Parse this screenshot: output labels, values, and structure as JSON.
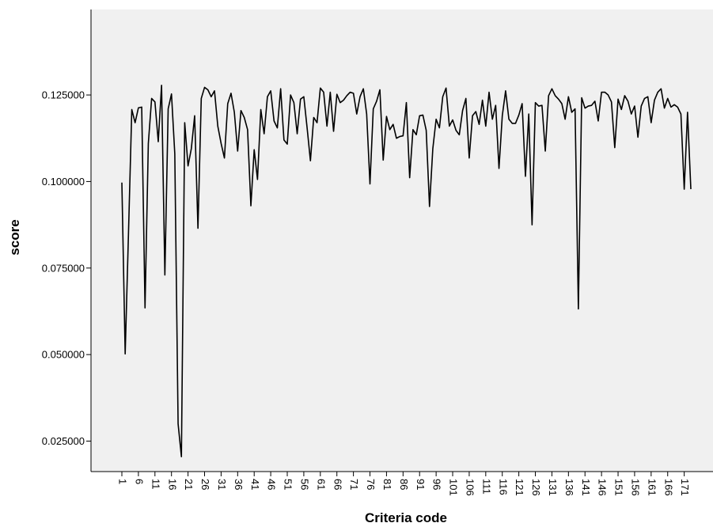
{
  "chart_data": {
    "type": "line",
    "title": "",
    "xlabel": "Criteria code",
    "ylabel": "score",
    "ylim": [
      0.0162,
      0.1497
    ],
    "y_ticks": [
      0.025,
      0.05,
      0.075,
      0.1,
      0.125
    ],
    "y_tick_labels": [
      "0.025000",
      "0.050000",
      "0.075000",
      "0.100000",
      "0.125000"
    ],
    "x_tick_labels": [
      "1",
      "6",
      "11",
      "16",
      "21",
      "26",
      "31",
      "36",
      "41",
      "46",
      "51",
      "56",
      "61",
      "66",
      "71",
      "76",
      "81",
      "86",
      "91",
      "96",
      "101",
      "106",
      "111",
      "116",
      "121",
      "126",
      "131",
      "136",
      "141",
      "146",
      "151",
      "156",
      "161",
      "166",
      "171"
    ],
    "plot_background": "#f0f0f0",
    "line_color": "#000000",
    "grid": false,
    "series": [
      {
        "x": [
          1,
          2,
          3,
          4,
          5,
          6,
          7,
          8,
          9,
          10,
          11,
          12,
          13,
          14,
          15,
          16,
          17,
          18,
          19,
          20,
          21,
          22,
          23,
          24,
          25,
          26,
          27,
          28,
          29,
          30,
          31,
          32,
          33,
          34,
          35,
          36,
          37,
          38,
          39,
          40,
          41,
          42,
          43,
          44,
          45,
          46,
          47,
          48,
          49,
          50,
          51,
          52,
          53,
          54,
          55,
          56,
          57,
          58,
          59,
          60,
          61,
          62,
          63,
          64,
          65,
          66,
          67,
          68,
          69,
          70,
          71,
          72,
          73,
          74,
          75,
          76,
          77,
          78,
          79,
          80,
          81,
          82,
          83,
          84,
          85,
          86,
          87,
          88,
          89,
          90,
          91,
          92,
          93,
          94,
          95,
          96,
          97,
          98,
          99,
          100,
          101,
          102,
          103,
          104,
          105,
          106,
          107,
          108,
          109,
          110,
          111,
          112,
          113,
          114,
          115,
          116,
          117,
          118,
          119,
          120,
          121,
          122,
          123,
          124,
          125,
          126,
          127,
          128,
          129,
          130,
          131,
          132,
          133,
          134,
          135,
          136,
          137,
          138,
          139,
          140,
          141,
          142,
          143,
          144,
          145,
          146,
          147,
          148,
          149,
          150,
          151,
          152,
          153,
          154,
          155,
          156,
          157,
          158,
          159,
          160,
          161,
          162,
          163,
          164,
          165,
          166,
          167,
          168,
          169,
          170,
          171,
          172,
          173
        ],
        "values": [
          0.0997,
          0.0502,
          0.085,
          0.1208,
          0.117,
          0.1213,
          0.1215,
          0.0635,
          0.111,
          0.124,
          0.123,
          0.1115,
          0.1278,
          0.073,
          0.121,
          0.1253,
          0.108,
          0.03,
          0.0205,
          0.117,
          0.1045,
          0.1095,
          0.119,
          0.0865,
          0.124,
          0.1272,
          0.1265,
          0.1245,
          0.1262,
          0.116,
          0.111,
          0.1068,
          0.1225,
          0.1255,
          0.12,
          0.1088,
          0.1205,
          0.1185,
          0.115,
          0.093,
          0.1092,
          0.1006,
          0.1208,
          0.1138,
          0.1245,
          0.1262,
          0.1175,
          0.1155,
          0.1268,
          0.112,
          0.1108,
          0.125,
          0.1228,
          0.1138,
          0.1238,
          0.1245,
          0.1155,
          0.106,
          0.1185,
          0.117,
          0.127,
          0.1258,
          0.116,
          0.1258,
          0.1145,
          0.1252,
          0.1228,
          0.1235,
          0.1248,
          0.1258,
          0.1255,
          0.1195,
          0.1245,
          0.1268,
          0.1195,
          0.0993,
          0.121,
          0.1232,
          0.1265,
          0.1062,
          0.1188,
          0.115,
          0.1165,
          0.1125,
          0.113,
          0.1132,
          0.1228,
          0.1011,
          0.115,
          0.1135,
          0.119,
          0.1192,
          0.1148,
          0.0928,
          0.1095,
          0.118,
          0.1155,
          0.1245,
          0.127,
          0.116,
          0.1178,
          0.1148,
          0.1135,
          0.1205,
          0.124,
          0.1068,
          0.119,
          0.1202,
          0.1165,
          0.1235,
          0.116,
          0.1258,
          0.118,
          0.122,
          0.1038,
          0.119,
          0.1262,
          0.118,
          0.1168,
          0.1168,
          0.1192,
          0.1225,
          0.1015,
          0.1195,
          0.0875,
          0.1228,
          0.1218,
          0.122,
          0.1088,
          0.1248,
          0.1268,
          0.1248,
          0.1238,
          0.1225,
          0.118,
          0.1245,
          0.12,
          0.121,
          0.0632,
          0.1242,
          0.1212,
          0.1218,
          0.122,
          0.1232,
          0.1175,
          0.1258,
          0.1258,
          0.125,
          0.123,
          0.1098,
          0.1238,
          0.1208,
          0.1248,
          0.1232,
          0.1195,
          0.1218,
          0.1128,
          0.1218,
          0.124,
          0.1245,
          0.117,
          0.1235,
          0.1258,
          0.1268,
          0.1212,
          0.124,
          0.1215,
          0.1222,
          0.1215,
          0.1195,
          0.0978,
          0.12,
          0.0978
        ]
      }
    ]
  }
}
